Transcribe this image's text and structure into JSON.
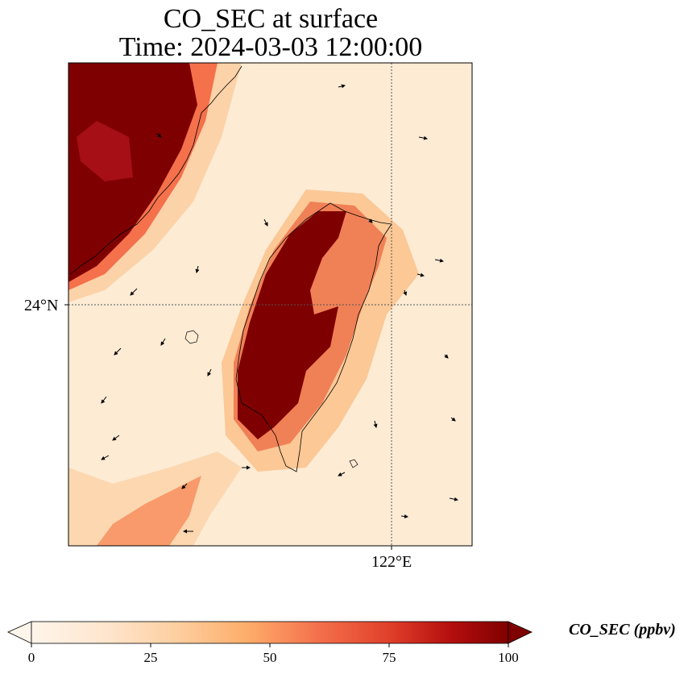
{
  "title": {
    "line1": "CO_SEC at surface",
    "line2": "Time: 2024-03-03 12:00:00"
  },
  "map": {
    "lat_tick_label": "24°N",
    "lon_tick_label": "122°E",
    "colormap": [
      "#fff5eb",
      "#fee6ce",
      "#fdd0a2",
      "#fdae6b",
      "#fd8d3c",
      "#f16913",
      "#d94801",
      "#a50f15",
      "#7f0000"
    ],
    "coastline_color": "#000000",
    "gridline_style": "dotted"
  },
  "colorbar": {
    "label": "CO_SEC (ppbv)",
    "ticks": [
      "0",
      "25",
      "50",
      "75",
      "100"
    ],
    "min": 0,
    "max": 100,
    "extend": "both"
  }
}
